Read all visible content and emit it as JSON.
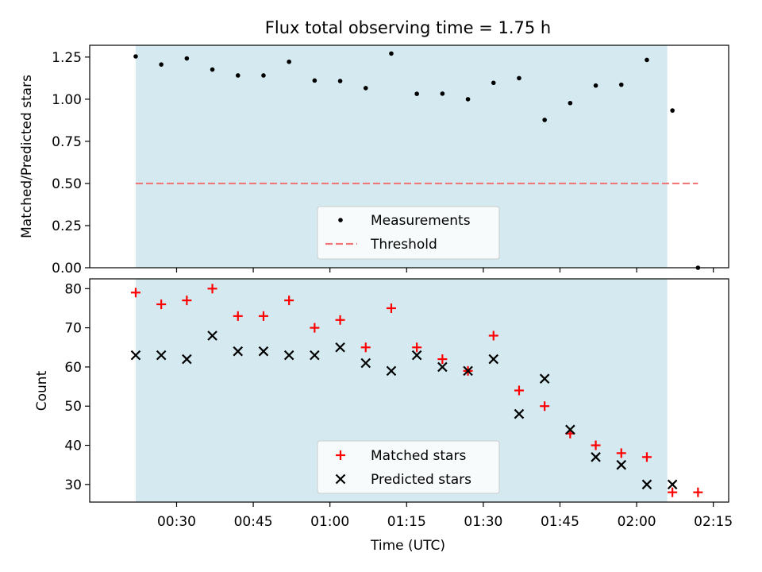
{
  "title": "Flux total observing time = 1.75 h",
  "colors": {
    "shade": "#d4eaf0",
    "threshold": "#f07878",
    "matched": "#ff0000",
    "predicted": "#000000",
    "measure": "#000000"
  },
  "chart_data": [
    {
      "type": "scatter",
      "ylabel": "Matched/Predicted stars",
      "ylim": [
        0,
        1.32
      ],
      "yticks": [
        0.0,
        0.25,
        0.5,
        0.75,
        1.0,
        1.25
      ],
      "ytick_labels": [
        "0.00",
        "0.25",
        "0.50",
        "0.75",
        "1.00",
        "1.25"
      ],
      "shaded_span": [
        "00:22",
        "02:06"
      ],
      "legend": {
        "position": "lower-center",
        "entries": [
          "Measurements",
          "Threshold"
        ]
      },
      "series": [
        {
          "name": "Measurements",
          "marker": "dot",
          "x": [
            "00:22",
            "00:27",
            "00:32",
            "00:37",
            "00:42",
            "00:47",
            "00:52",
            "00:57",
            "01:02",
            "01:07",
            "01:12",
            "01:17",
            "01:22",
            "01:27",
            "01:32",
            "01:37",
            "01:42",
            "01:47",
            "01:52",
            "01:57",
            "02:02",
            "02:07",
            "02:12"
          ],
          "y": [
            1.254,
            1.206,
            1.242,
            1.176,
            1.141,
            1.141,
            1.222,
            1.111,
            1.108,
            1.066,
            1.271,
            1.032,
            1.033,
            1.0,
            1.097,
            1.125,
            0.877,
            0.977,
            1.081,
            1.086,
            1.233,
            0.933,
            0.0
          ]
        },
        {
          "name": "Threshold",
          "marker": "dashed-line",
          "x": [
            "00:22",
            "02:12"
          ],
          "y": [
            0.5,
            0.5
          ]
        }
      ]
    },
    {
      "type": "scatter",
      "ylabel": "Count",
      "xlabel": "Time (UTC)",
      "ylim": [
        25.5,
        82.5
      ],
      "yticks": [
        30,
        40,
        50,
        60,
        70,
        80
      ],
      "ytick_labels": [
        "30",
        "40",
        "50",
        "60",
        "70",
        "80"
      ],
      "xlim": [
        "00:13",
        "02:18"
      ],
      "xticks": [
        "00:30",
        "00:45",
        "01:00",
        "01:15",
        "01:30",
        "01:45",
        "02:00",
        "02:15"
      ],
      "shaded_span": [
        "00:22",
        "02:06"
      ],
      "legend": {
        "position": "lower-center",
        "entries": [
          "Matched stars",
          "Predicted stars"
        ]
      },
      "series": [
        {
          "name": "Matched stars",
          "marker": "plus",
          "x": [
            "00:22",
            "00:27",
            "00:32",
            "00:37",
            "00:42",
            "00:47",
            "00:52",
            "00:57",
            "01:02",
            "01:07",
            "01:12",
            "01:17",
            "01:22",
            "01:27",
            "01:32",
            "01:37",
            "01:42",
            "01:47",
            "01:52",
            "01:57",
            "02:02",
            "02:07",
            "02:12"
          ],
          "y": [
            79,
            76,
            77,
            80,
            73,
            73,
            77,
            70,
            72,
            65,
            75,
            65,
            62,
            59,
            68,
            54,
            50,
            43,
            40,
            38,
            37,
            28,
            28
          ]
        },
        {
          "name": "Predicted stars",
          "marker": "x",
          "x": [
            "00:22",
            "00:27",
            "00:32",
            "00:37",
            "00:42",
            "00:47",
            "00:52",
            "00:57",
            "01:02",
            "01:07",
            "01:12",
            "01:17",
            "01:22",
            "01:27",
            "01:32",
            "01:37",
            "01:42",
            "01:47",
            "01:52",
            "01:57",
            "02:02",
            "02:07"
          ],
          "y": [
            63,
            63,
            62,
            68,
            64,
            64,
            63,
            63,
            65,
            61,
            59,
            63,
            60,
            59,
            62,
            48,
            57,
            44,
            37,
            35,
            30,
            30
          ]
        }
      ]
    }
  ]
}
